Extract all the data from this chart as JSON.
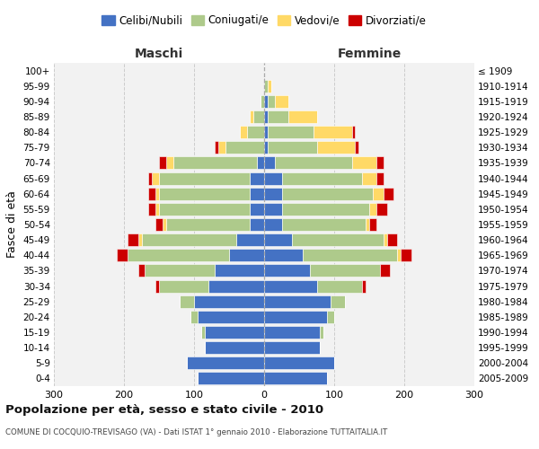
{
  "age_groups": [
    "0-4",
    "5-9",
    "10-14",
    "15-19",
    "20-24",
    "25-29",
    "30-34",
    "35-39",
    "40-44",
    "45-49",
    "50-54",
    "55-59",
    "60-64",
    "65-69",
    "70-74",
    "75-79",
    "80-84",
    "85-89",
    "90-94",
    "95-99",
    "100+"
  ],
  "birth_years": [
    "2005-2009",
    "2000-2004",
    "1995-1999",
    "1990-1994",
    "1985-1989",
    "1980-1984",
    "1975-1979",
    "1970-1974",
    "1965-1969",
    "1960-1964",
    "1955-1959",
    "1950-1954",
    "1945-1949",
    "1940-1944",
    "1935-1939",
    "1930-1934",
    "1925-1929",
    "1920-1924",
    "1915-1919",
    "1910-1914",
    "≤ 1909"
  ],
  "maschi": {
    "celibi": [
      95,
      110,
      85,
      85,
      95,
      100,
      80,
      70,
      50,
      40,
      20,
      20,
      20,
      20,
      10,
      0,
      0,
      0,
      0,
      0,
      0
    ],
    "coniugati": [
      0,
      0,
      0,
      5,
      10,
      20,
      70,
      100,
      145,
      135,
      120,
      130,
      130,
      130,
      120,
      55,
      25,
      15,
      5,
      0,
      0
    ],
    "vedovi": [
      0,
      0,
      0,
      0,
      0,
      0,
      0,
      0,
      0,
      5,
      5,
      5,
      5,
      10,
      10,
      10,
      10,
      5,
      0,
      0,
      0
    ],
    "divorziati": [
      0,
      0,
      0,
      0,
      0,
      0,
      5,
      10,
      15,
      15,
      10,
      10,
      10,
      5,
      10,
      5,
      0,
      0,
      0,
      0,
      0
    ]
  },
  "femmine": {
    "nubili": [
      90,
      100,
      80,
      80,
      90,
      95,
      75,
      65,
      55,
      40,
      25,
      25,
      25,
      25,
      15,
      5,
      5,
      5,
      5,
      0,
      0
    ],
    "coniugate": [
      0,
      0,
      0,
      5,
      10,
      20,
      65,
      100,
      135,
      130,
      120,
      125,
      130,
      115,
      110,
      70,
      65,
      30,
      10,
      5,
      0
    ],
    "vedove": [
      0,
      0,
      0,
      0,
      0,
      0,
      0,
      0,
      5,
      5,
      5,
      10,
      15,
      20,
      35,
      55,
      55,
      40,
      20,
      5,
      0
    ],
    "divorziate": [
      0,
      0,
      0,
      0,
      0,
      0,
      5,
      15,
      15,
      15,
      10,
      15,
      15,
      10,
      10,
      5,
      5,
      0,
      0,
      0,
      0
    ]
  },
  "colors": {
    "celibi": "#4472C4",
    "coniugati": "#AECA8B",
    "vedovi": "#FFD966",
    "divorziati": "#CC0000"
  },
  "xlim": 300,
  "title": "Popolazione per età, sesso e stato civile - 2010",
  "subtitle": "COMUNE DI COCQUIO-TREVISAGO (VA) - Dati ISTAT 1° gennaio 2010 - Elaborazione TUTTAITALIA.IT",
  "ylabel_left": "Fasce di età",
  "xlabel_left": "Maschi",
  "xlabel_right": "Femmine",
  "bg_color": "#FFFFFF",
  "plot_bg_color": "#F2F2F2"
}
